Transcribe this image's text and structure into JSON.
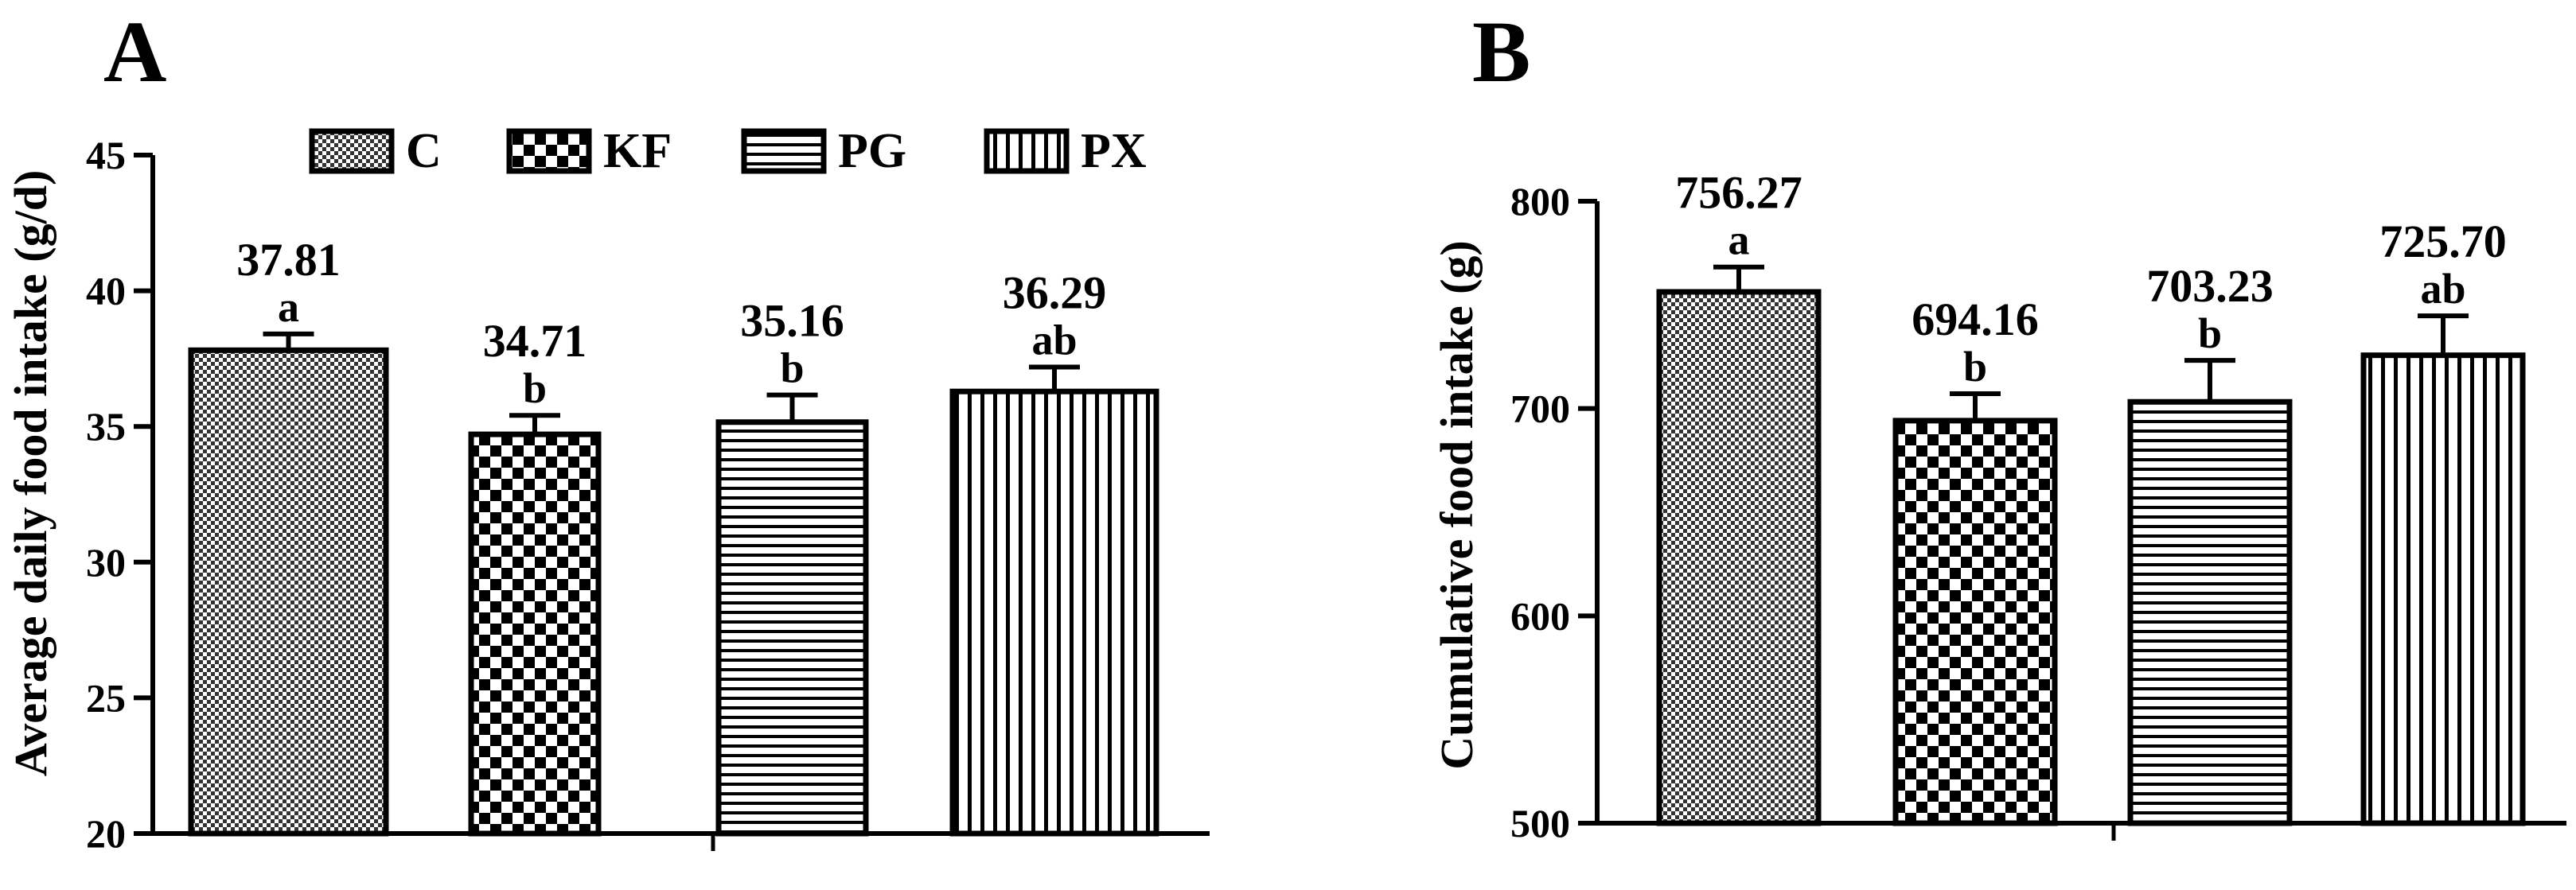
{
  "chart_data": [
    {
      "id": "A",
      "type": "bar",
      "panel_label": "A",
      "ylabel": "Average daily food intake (g/d)",
      "ylim": [
        20,
        45
      ],
      "yticks": [
        20,
        25,
        30,
        35,
        40,
        45
      ],
      "categories": [
        "C",
        "KF",
        "PG",
        "PX"
      ],
      "values": [
        37.81,
        34.71,
        35.16,
        36.29
      ],
      "errors": [
        0.6,
        0.7,
        1.0,
        0.9
      ],
      "value_labels": [
        "37.81",
        "34.71",
        "35.16",
        "36.29"
      ],
      "letters": [
        "a",
        "b",
        "b",
        "ab"
      ],
      "legend": [
        "C",
        "KF",
        "PG",
        "PX"
      ]
    },
    {
      "id": "B",
      "type": "bar",
      "panel_label": "B",
      "ylabel": "Cumulative food intake (g)",
      "ylim": [
        500,
        800
      ],
      "yticks": [
        500,
        600,
        700,
        800
      ],
      "categories": [
        "C",
        "KF",
        "PG",
        "PX"
      ],
      "values": [
        756.27,
        694.16,
        703.23,
        725.7
      ],
      "errors": [
        12,
        13,
        20,
        19
      ],
      "value_labels": [
        "756.27",
        "694.16",
        "703.23",
        "725.70"
      ],
      "letters": [
        "a",
        "b",
        "b",
        "ab"
      ]
    }
  ]
}
